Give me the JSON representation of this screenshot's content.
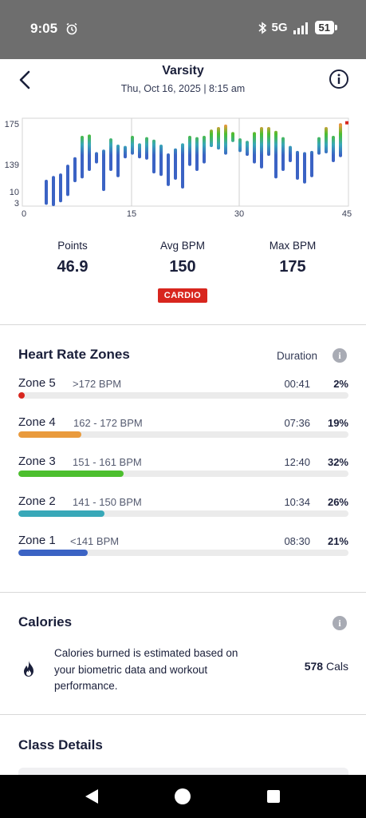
{
  "status_bar": {
    "time": "9:05",
    "network": "5G",
    "battery": "51",
    "icons": [
      "alarm-icon",
      "bluetooth-icon",
      "signal-icon",
      "battery-icon"
    ]
  },
  "header": {
    "title": "Varsity",
    "subtitle": "Thu, Oct 16, 2025 | 8:15 am",
    "back_icon": "chevron-left-icon",
    "info_icon": "info-icon"
  },
  "chart_data": {
    "type": "bar",
    "x_ticks": [
      "0",
      "15",
      "30",
      "45"
    ],
    "xlim": [
      0,
      45
    ],
    "y_ticks": [
      "175",
      "139",
      "10",
      "3"
    ],
    "grid": "vertical lines at 15 and 30",
    "zone_colors": [
      "#3b63c4",
      "#38a8b8",
      "#4cbf2e",
      "#e99a3c",
      "#d8261e"
    ],
    "bars": [
      {
        "x": 3,
        "low": 1,
        "high": 21,
        "zone_top": 1
      },
      {
        "x": 4,
        "low": 0,
        "high": 24,
        "zone_top": 1
      },
      {
        "x": 5,
        "low": 3,
        "high": 26,
        "zone_top": 1
      },
      {
        "x": 6,
        "low": 8,
        "high": 33,
        "zone_top": 1
      },
      {
        "x": 7,
        "low": 19,
        "high": 39,
        "zone_top": 1
      },
      {
        "x": 8,
        "low": 22,
        "high": 56,
        "zone_top": 2
      },
      {
        "x": 9,
        "low": 28,
        "high": 57,
        "zone_top": 3
      },
      {
        "x": 10,
        "low": 34,
        "high": 43,
        "zone_top": 3
      },
      {
        "x": 11,
        "low": 12,
        "high": 45,
        "zone_top": 2
      },
      {
        "x": 12,
        "low": 28,
        "high": 54,
        "zone_top": 3
      },
      {
        "x": 13,
        "low": 23,
        "high": 49,
        "zone_top": 3
      },
      {
        "x": 14,
        "low": 38,
        "high": 48,
        "zone_top": 2
      },
      {
        "x": 15,
        "low": 41,
        "high": 56,
        "zone_top": 3
      },
      {
        "x": 16,
        "low": 38,
        "high": 50,
        "zone_top": 3
      },
      {
        "x": 17,
        "low": 37,
        "high": 55,
        "zone_top": 3
      },
      {
        "x": 18,
        "low": 26,
        "high": 53,
        "zone_top": 3
      },
      {
        "x": 19,
        "low": 24,
        "high": 49,
        "zone_top": 3
      },
      {
        "x": 20,
        "low": 16,
        "high": 42,
        "zone_top": 2
      },
      {
        "x": 21,
        "low": 21,
        "high": 46,
        "zone_top": 3
      },
      {
        "x": 22,
        "low": 14,
        "high": 50,
        "zone_top": 3
      },
      {
        "x": 23,
        "low": 32,
        "high": 56,
        "zone_top": 3
      },
      {
        "x": 24,
        "low": 28,
        "high": 55,
        "zone_top": 3
      },
      {
        "x": 25,
        "low": 34,
        "high": 56,
        "zone_top": 3
      },
      {
        "x": 26,
        "low": 47,
        "high": 61,
        "zone_top": 4
      },
      {
        "x": 27,
        "low": 45,
        "high": 63,
        "zone_top": 4
      },
      {
        "x": 28,
        "low": 41,
        "high": 65,
        "zone_top": 4
      },
      {
        "x": 29,
        "low": 51,
        "high": 59,
        "zone_top": 4
      },
      {
        "x": 30,
        "low": 43,
        "high": 54,
        "zone_top": 3
      },
      {
        "x": 31,
        "low": 40,
        "high": 52,
        "zone_top": 3
      },
      {
        "x": 32,
        "low": 34,
        "high": 59,
        "zone_top": 4
      },
      {
        "x": 33,
        "low": 30,
        "high": 63,
        "zone_top": 4
      },
      {
        "x": 34,
        "low": 40,
        "high": 63,
        "zone_top": 4
      },
      {
        "x": 35,
        "low": 22,
        "high": 60,
        "zone_top": 4
      },
      {
        "x": 36,
        "low": 28,
        "high": 55,
        "zone_top": 3
      },
      {
        "x": 37,
        "low": 35,
        "high": 48,
        "zone_top": 2
      },
      {
        "x": 38,
        "low": 21,
        "high": 44,
        "zone_top": 2
      },
      {
        "x": 39,
        "low": 18,
        "high": 43,
        "zone_top": 2
      },
      {
        "x": 40,
        "low": 23,
        "high": 44,
        "zone_top": 2
      },
      {
        "x": 41,
        "low": 41,
        "high": 55,
        "zone_top": 3
      },
      {
        "x": 42,
        "low": 42,
        "high": 63,
        "zone_top": 4
      },
      {
        "x": 43,
        "low": 35,
        "high": 56,
        "zone_top": 4
      },
      {
        "x": 44,
        "low": 39,
        "high": 66,
        "zone_top": 5
      }
    ],
    "markers": [
      {
        "x": 45,
        "y": 67,
        "zone": 5
      }
    ]
  },
  "stats": [
    {
      "label": "Points",
      "value": "46.9"
    },
    {
      "label": "Avg BPM",
      "value": "150"
    },
    {
      "label": "Max BPM",
      "value": "175"
    }
  ],
  "badge": "CARDIO",
  "zones_section": {
    "title": "Heart Rate Zones",
    "duration_label": "Duration",
    "info_icon": "info-icon",
    "zones": [
      {
        "name": "Zone 5",
        "range": ">172 BPM",
        "duration": "00:41",
        "percent": "2%",
        "fraction": 0.02,
        "color": "#d8261e"
      },
      {
        "name": "Zone 4",
        "range": "162 - 172 BPM",
        "duration": "07:36",
        "percent": "19%",
        "fraction": 0.19,
        "color": "#e99a3c"
      },
      {
        "name": "Zone 3",
        "range": "151 - 161 BPM",
        "duration": "12:40",
        "percent": "32%",
        "fraction": 0.32,
        "color": "#4cbf2e"
      },
      {
        "name": "Zone 2",
        "range": "141 - 150 BPM",
        "duration": "10:34",
        "percent": "26%",
        "fraction": 0.26,
        "color": "#38a8b8"
      },
      {
        "name": "Zone 1",
        "range": "<141 BPM",
        "duration": "08:30",
        "percent": "21%",
        "fraction": 0.21,
        "color": "#3b63c4"
      }
    ]
  },
  "calories_section": {
    "title": "Calories",
    "description": "Calories burned is estimated based on your biometric data and workout performance.",
    "value": "578",
    "unit": "Cals",
    "icon": "flame-icon"
  },
  "class_details": {
    "title": "Class Details"
  },
  "nav_bar": {
    "icons": [
      "nav-back-icon",
      "nav-home-icon",
      "nav-recents-icon"
    ]
  }
}
